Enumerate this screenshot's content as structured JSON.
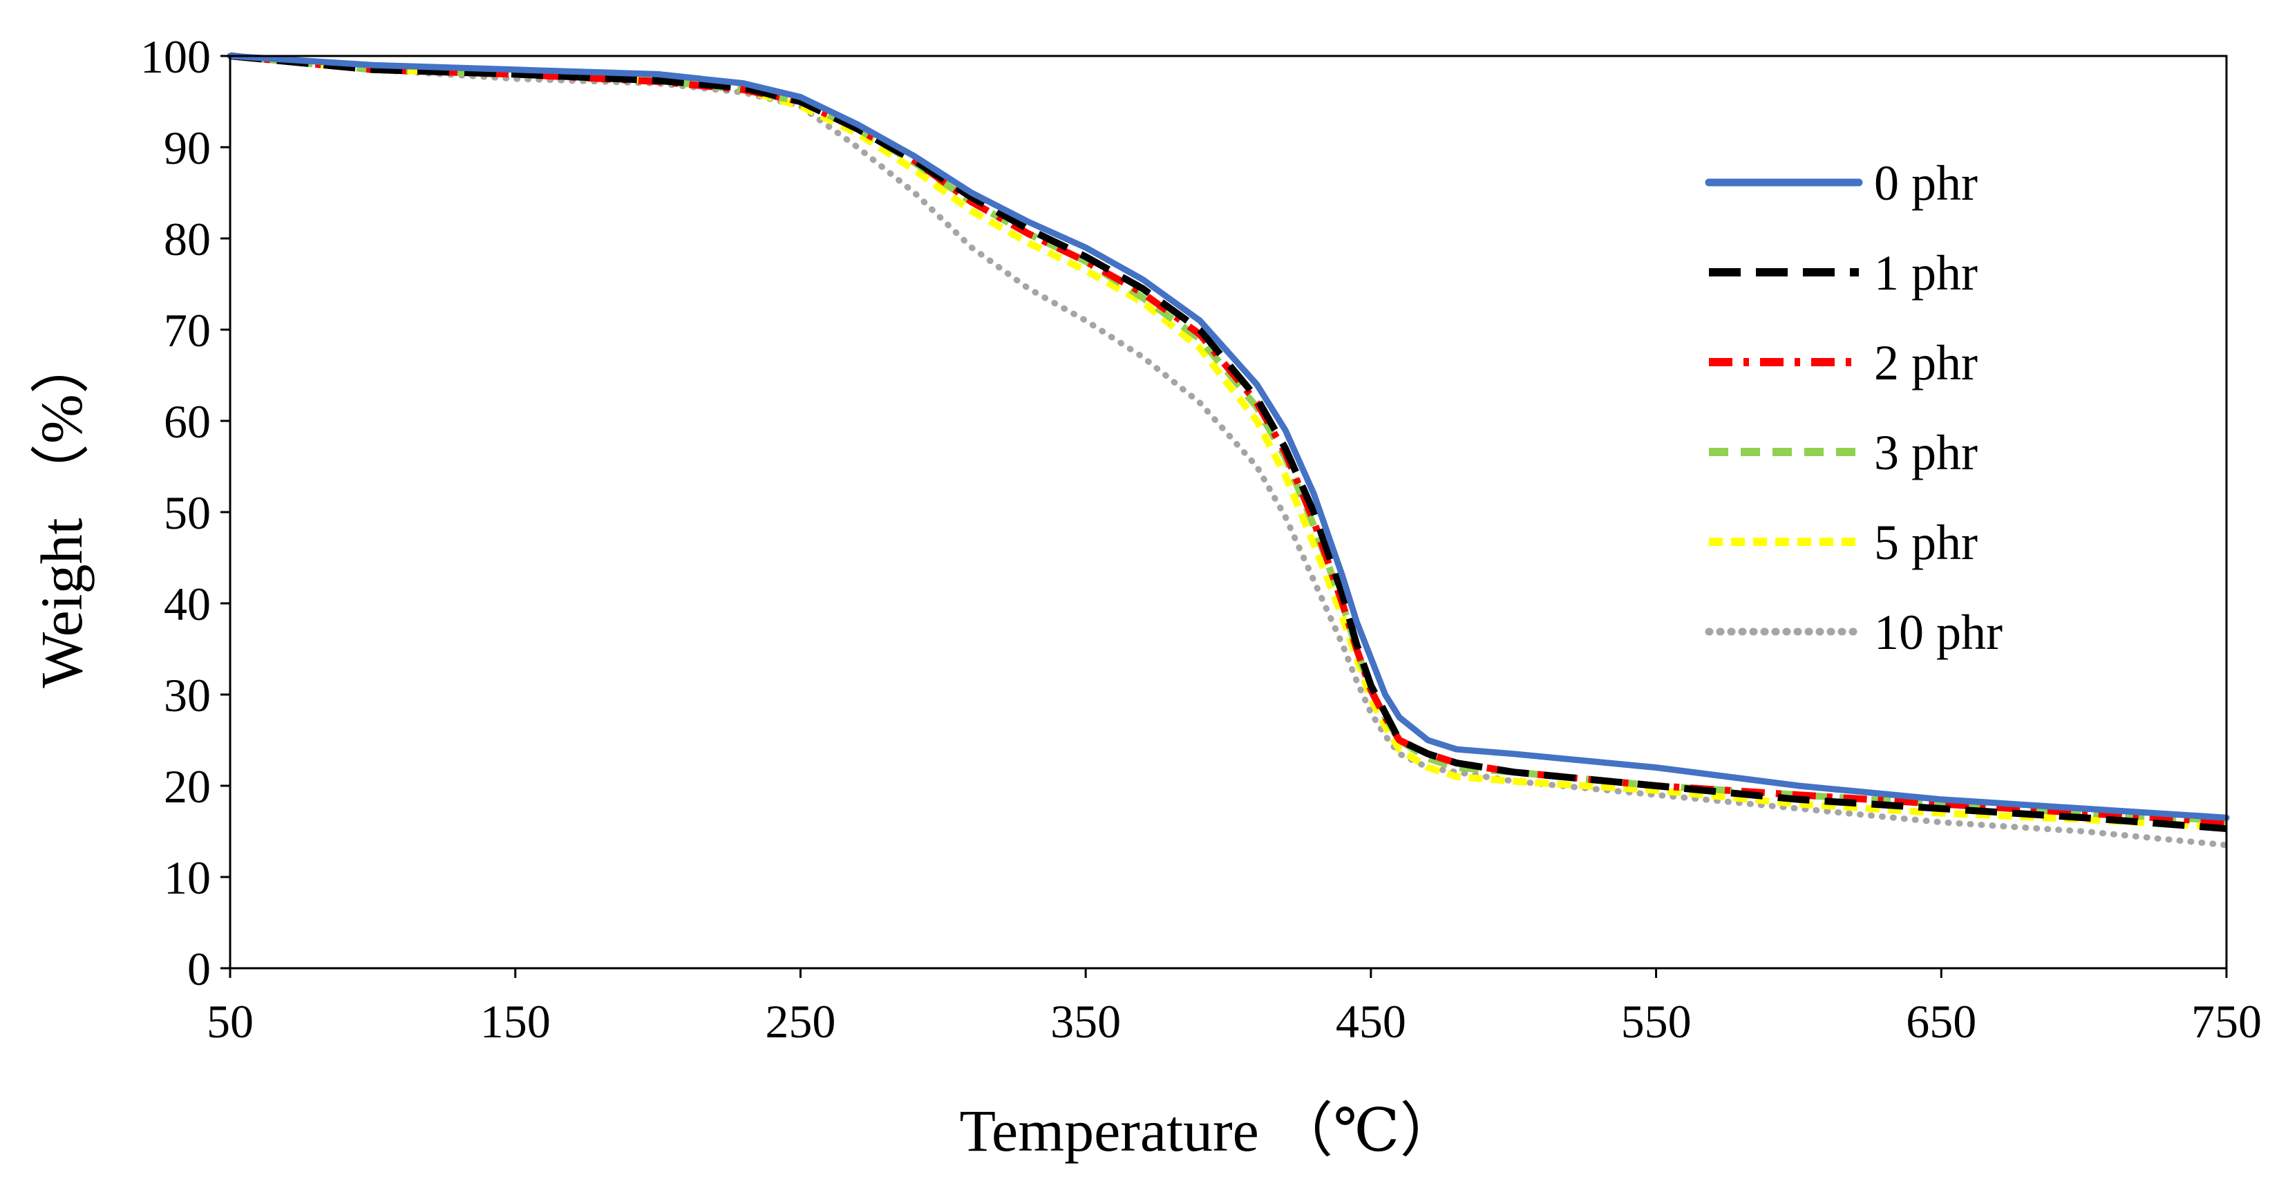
{
  "chart_data": {
    "type": "line",
    "title": "",
    "xlabel": "Temperature （℃）",
    "ylabel": "Weight （%）",
    "xlim": [
      50,
      750
    ],
    "ylim": [
      0,
      100
    ],
    "xticks": [
      50,
      150,
      250,
      350,
      450,
      550,
      650,
      750
    ],
    "yticks": [
      0,
      10,
      20,
      30,
      40,
      50,
      60,
      70,
      80,
      90,
      100
    ],
    "grid": false,
    "legend_position": "right",
    "series": [
      {
        "name": "0 phr",
        "color": "#4472C4",
        "style": "solid",
        "x": [
          50,
          100,
          150,
          200,
          230,
          250,
          270,
          290,
          310,
          330,
          350,
          370,
          390,
          410,
          420,
          430,
          440,
          445,
          450,
          455,
          460,
          470,
          480,
          500,
          550,
          600,
          650,
          700,
          750
        ],
        "y": [
          100,
          99,
          98.5,
          98,
          97,
          95.5,
          92.5,
          89,
          85,
          81.8,
          79,
          75.5,
          71,
          64,
          59,
          52,
          43,
          38,
          34,
          30,
          27.5,
          25,
          24,
          23.5,
          22,
          20,
          18.5,
          17.5,
          16.5
        ]
      },
      {
        "name": "1 phr",
        "color": "#000000",
        "style": "long-dash",
        "x": [
          50,
          100,
          150,
          200,
          230,
          250,
          270,
          290,
          310,
          330,
          350,
          370,
          390,
          410,
          420,
          430,
          440,
          445,
          450,
          455,
          460,
          470,
          480,
          500,
          550,
          600,
          650,
          700,
          750
        ],
        "y": [
          100,
          98.5,
          98,
          97.3,
          96.5,
          95,
          92,
          88.5,
          84.5,
          81,
          78,
          74.5,
          70,
          62.5,
          57,
          50,
          41,
          35.5,
          31,
          28,
          25,
          23.5,
          22.5,
          21.5,
          20,
          18.5,
          17.5,
          16.5,
          15.3
        ]
      },
      {
        "name": "2 phr",
        "color": "#FF0000",
        "style": "dash-dot",
        "x": [
          50,
          100,
          150,
          200,
          230,
          250,
          270,
          290,
          310,
          330,
          350,
          370,
          390,
          410,
          420,
          430,
          440,
          445,
          450,
          455,
          460,
          470,
          480,
          500,
          550,
          600,
          650,
          700,
          750
        ],
        "y": [
          100,
          98.5,
          98,
          97.2,
          96.3,
          95,
          92,
          88.5,
          84,
          80.5,
          77.5,
          74,
          69.5,
          62,
          56.5,
          49,
          40,
          35,
          30.5,
          27.5,
          25,
          23.5,
          22.5,
          21.5,
          20,
          19,
          18,
          17,
          16
        ]
      },
      {
        "name": "3 phr",
        "color": "#92D050",
        "style": "dash",
        "x": [
          50,
          100,
          150,
          200,
          230,
          250,
          270,
          290,
          310,
          330,
          350,
          370,
          390,
          410,
          420,
          430,
          440,
          445,
          450,
          455,
          460,
          470,
          480,
          500,
          550,
          600,
          650,
          700,
          750
        ],
        "y": [
          100,
          98.5,
          98,
          97.3,
          96.3,
          95,
          92,
          88.3,
          84,
          80.5,
          77.5,
          73.5,
          69,
          61.5,
          56,
          48.5,
          40,
          35,
          30.5,
          27.5,
          25,
          23,
          22,
          21.5,
          20,
          19,
          18,
          17,
          16.2
        ]
      },
      {
        "name": "5 phr",
        "color": "#FFFF00",
        "style": "short-dash",
        "x": [
          50,
          100,
          150,
          200,
          230,
          250,
          270,
          290,
          310,
          330,
          350,
          370,
          390,
          410,
          420,
          430,
          440,
          445,
          450,
          455,
          460,
          470,
          480,
          500,
          550,
          600,
          650,
          700,
          750
        ],
        "y": [
          100,
          98.5,
          98,
          97.3,
          96.3,
          94.5,
          91.5,
          87.5,
          83,
          79.5,
          76.5,
          73,
          68,
          60,
          54,
          46.5,
          38.5,
          34,
          29.5,
          26.5,
          24,
          22,
          21,
          20.5,
          19.5,
          18,
          17,
          16.3,
          15.5
        ]
      },
      {
        "name": "10 phr",
        "color": "#A5A5A5",
        "style": "dotted",
        "x": [
          50,
          100,
          150,
          200,
          230,
          250,
          270,
          290,
          310,
          330,
          350,
          370,
          390,
          410,
          420,
          430,
          440,
          445,
          450,
          455,
          460,
          470,
          480,
          500,
          550,
          600,
          650,
          700,
          750
        ],
        "y": [
          100,
          98.5,
          97.5,
          97,
          96,
          94.5,
          90,
          85,
          79,
          74.5,
          71,
          67,
          62,
          55,
          49.5,
          42.5,
          35.5,
          31.5,
          28,
          25.5,
          23.5,
          22,
          21.5,
          20.5,
          19,
          17.5,
          16,
          15,
          13.5
        ]
      }
    ]
  }
}
